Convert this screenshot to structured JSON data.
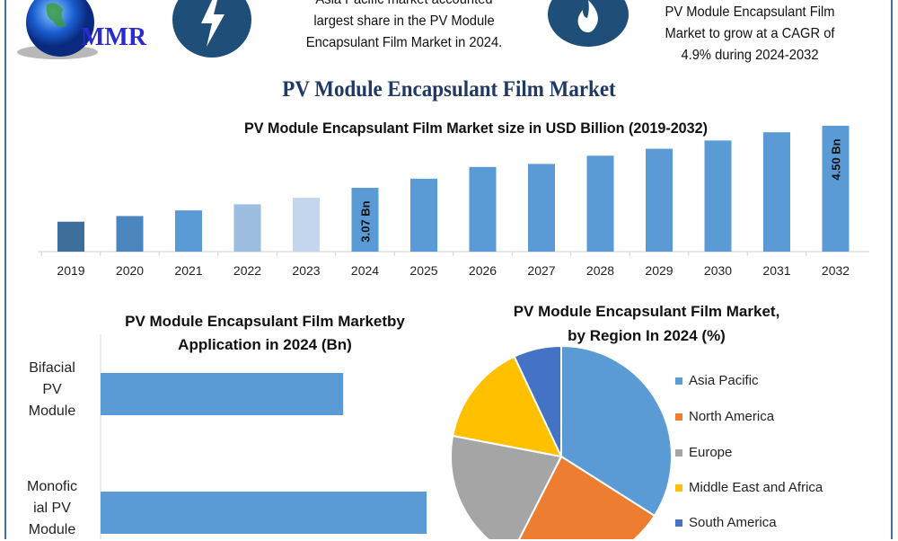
{
  "logo": {
    "text": "MMR"
  },
  "header": {
    "left_icon": "lightning-icon",
    "left_text": [
      "Asia Pacific market accounted",
      "largest share in the PV Module",
      "Encapsulant Film Market in 2024."
    ],
    "right_icon": "flame-icon",
    "right_text": [
      "PV Module Encapsulant Film",
      "Market to grow at a CAGR of",
      "4.9% during 2024-2032"
    ]
  },
  "title": "PV Module Encapsulant Film Market",
  "colors": {
    "accent": "#5b9bd5",
    "navy": "#1f3864",
    "frame": "#41719c"
  },
  "chart_data": [
    {
      "type": "bar",
      "title": "PV Module Encapsulant Film Market size in USD Billion (2019-2032)",
      "categories": [
        "2019",
        "2020",
        "2021",
        "2022",
        "2023",
        "2024",
        "2025",
        "2026",
        "2027",
        "2028",
        "2029",
        "2030",
        "2031",
        "2032"
      ],
      "values": [
        2.29,
        2.42,
        2.55,
        2.69,
        2.84,
        3.07,
        3.28,
        3.55,
        3.62,
        3.81,
        3.97,
        4.16,
        4.35,
        4.5
      ],
      "bar_colors": [
        "#3e6f9c",
        "#4a86bd",
        "#5b9bd5",
        "#9dbde0",
        "#c3d6ee",
        "#5b9bd5",
        "#5b9bd5",
        "#5b9bd5",
        "#5b9bd5",
        "#5b9bd5",
        "#5b9bd5",
        "#5b9bd5",
        "#5b9bd5",
        "#5b9bd5"
      ],
      "data_labels": {
        "2024": "3.07 Bn",
        "2032": "4.50 Bn"
      },
      "grid": false
    },
    {
      "type": "bar",
      "orientation": "horizontal",
      "title": [
        "PV Module Encapsulant Film Marketby",
        "Application in 2024 (Bn)"
      ],
      "categories": [
        [
          "Bifacial",
          "PV",
          "Module"
        ],
        [
          "Monofic",
          "ial PV",
          "Module"
        ]
      ],
      "values": [
        1.31,
        1.76
      ],
      "color": "#5b9bd5"
    },
    {
      "type": "pie",
      "title": [
        "PV Module Encapsulant Film Market,",
        "by Region In 2024 (%)"
      ],
      "categories": [
        "Asia Pacific",
        "North America",
        "Europe",
        "Middle East and Africa",
        "South America"
      ],
      "values": [
        34,
        23.5,
        20.5,
        15,
        7
      ],
      "colors": [
        "#5b9bd5",
        "#ed7d31",
        "#a5a5a5",
        "#ffc000",
        "#4472c4"
      ],
      "legend": "right"
    }
  ]
}
